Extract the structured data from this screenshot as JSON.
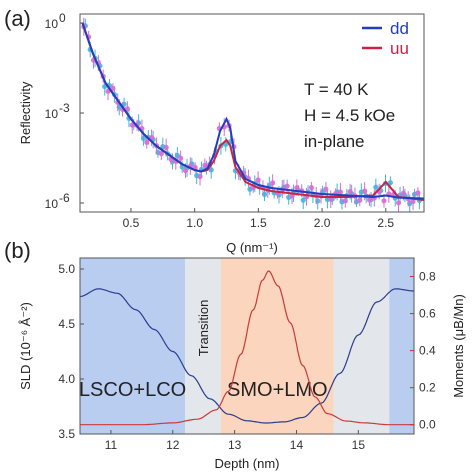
{
  "colors": {
    "dd": "#1f3fbf",
    "uu": "#cc2244",
    "dd_points": "#3fb6dc",
    "uu_points": "#d86cd6",
    "moment_axis": "#d02a2a",
    "region_lsco": "#b9cdf1",
    "region_transition": "#e3e6ea",
    "region_smo": "#fbd5bd"
  },
  "chart_data": [
    {
      "type": "line",
      "panel_label": "(a)",
      "xlabel": "Q (nm⁻¹)",
      "ylabel": "Reflectivity",
      "log_y": true,
      "xlim": [
        0.1,
        2.8
      ],
      "ylim_exponents": [
        -6.3,
        0.3
      ],
      "x_ticks": [
        0.5,
        1.0,
        1.5,
        2.0,
        2.5
      ],
      "x_tick_labels": [
        "0.5",
        "1.0",
        "1.5",
        "2.0",
        "2.5"
      ],
      "y_ticks": [
        0,
        -3,
        -6
      ],
      "y_tick_labels": [
        {
          "base": "10",
          "exp": "0"
        },
        {
          "base": "10",
          "exp": "-3"
        },
        {
          "base": "10",
          "exp": "-6"
        }
      ],
      "annotations": [
        "T = 40 K",
        "H = 4.5 kOe",
        "in-plane"
      ],
      "series": [
        {
          "name": "dd",
          "x": [
            0.12,
            0.2,
            0.3,
            0.4,
            0.5,
            0.6,
            0.7,
            0.8,
            0.9,
            1.0,
            1.05,
            1.1,
            1.15,
            1.2,
            1.25,
            1.28,
            1.32,
            1.4,
            1.5,
            1.6,
            1.8,
            2.0,
            2.2,
            2.4,
            2.5,
            2.6,
            2.8
          ],
          "log10_y": [
            0,
            -1.0,
            -2.0,
            -2.6,
            -3.2,
            -3.7,
            -4.1,
            -4.4,
            -4.7,
            -4.9,
            -4.95,
            -4.85,
            -4.4,
            -3.6,
            -3.2,
            -3.5,
            -4.6,
            -5.2,
            -5.4,
            -5.5,
            -5.6,
            -5.7,
            -5.75,
            -5.8,
            -5.75,
            -5.82,
            -5.85
          ]
        },
        {
          "name": "uu",
          "x": [
            0.12,
            0.2,
            0.3,
            0.4,
            0.5,
            0.6,
            0.7,
            0.8,
            0.9,
            1.0,
            1.05,
            1.1,
            1.15,
            1.2,
            1.25,
            1.28,
            1.32,
            1.4,
            1.5,
            1.6,
            1.8,
            2.0,
            2.2,
            2.4,
            2.5,
            2.6,
            2.8
          ],
          "log10_y": [
            0,
            -1.0,
            -2.0,
            -2.6,
            -3.2,
            -3.7,
            -4.1,
            -4.4,
            -4.7,
            -4.9,
            -4.95,
            -4.9,
            -4.6,
            -4.1,
            -3.9,
            -4.1,
            -4.8,
            -5.3,
            -5.5,
            -5.6,
            -5.7,
            -5.8,
            -5.8,
            -5.75,
            -5.3,
            -5.8,
            -5.9
          ]
        }
      ]
    },
    {
      "type": "line",
      "panel_label": "(b)",
      "xlabel": "Depth  (nm)",
      "ylabel": "SLD  (10⁻⁶ Å⁻²)",
      "ylabel_right": "Moments  (μB/Mn)",
      "xlim": [
        10.5,
        15.9
      ],
      "ylim": [
        3.5,
        5.1
      ],
      "ylim_right": [
        -0.05,
        0.9
      ],
      "x_ticks": [
        11,
        12,
        13,
        14,
        15
      ],
      "x_tick_labels": [
        "11",
        "12",
        "13",
        "14",
        "15"
      ],
      "y_ticks": [
        3.5,
        4.0,
        4.5,
        5.0
      ],
      "y_tick_labels": [
        "3.5",
        "4.0",
        "4.5",
        "5.0"
      ],
      "y_ticks_right": [
        0.0,
        0.2,
        0.4,
        0.6,
        0.8
      ],
      "y_tick_labels_right": [
        "0.0",
        "0.2",
        "0.4",
        "0.6",
        "0.8"
      ],
      "regions": [
        {
          "label": "LSCO+LCO",
          "x0": 10.5,
          "x1": 12.2,
          "kind": "lsco"
        },
        {
          "label": "Transition",
          "x0": 12.2,
          "x1": 12.78,
          "kind": "transition"
        },
        {
          "label": "SMO+LMO",
          "x0": 12.78,
          "x1": 14.6,
          "kind": "smo"
        },
        {
          "label": "",
          "x0": 14.6,
          "x1": 15.5,
          "kind": "transition"
        },
        {
          "label": "",
          "x0": 15.5,
          "x1": 15.9,
          "kind": "lsco"
        }
      ],
      "series": [
        {
          "name": "SLD",
          "axis": "left",
          "x": [
            10.5,
            10.8,
            11.1,
            11.4,
            11.7,
            12.0,
            12.3,
            12.6,
            12.9,
            13.2,
            13.5,
            13.8,
            14.1,
            14.4,
            14.7,
            15.0,
            15.3,
            15.6,
            15.9
          ],
          "y": [
            4.75,
            4.82,
            4.78,
            4.63,
            4.45,
            4.25,
            4.03,
            3.82,
            3.68,
            3.62,
            3.6,
            3.61,
            3.65,
            3.78,
            4.05,
            4.4,
            4.7,
            4.82,
            4.8
          ]
        },
        {
          "name": "Moments",
          "axis": "right",
          "x": [
            10.5,
            11.0,
            11.5,
            12.0,
            12.4,
            12.7,
            12.9,
            13.1,
            13.3,
            13.45,
            13.55,
            13.7,
            13.9,
            14.1,
            14.3,
            14.5,
            14.8,
            15.1,
            15.5,
            15.9
          ],
          "y": [
            0.0,
            0.0,
            0.0,
            0.01,
            0.03,
            0.08,
            0.18,
            0.38,
            0.62,
            0.78,
            0.83,
            0.75,
            0.55,
            0.32,
            0.15,
            0.06,
            0.02,
            0.01,
            0.0,
            0.0
          ]
        }
      ]
    }
  ]
}
